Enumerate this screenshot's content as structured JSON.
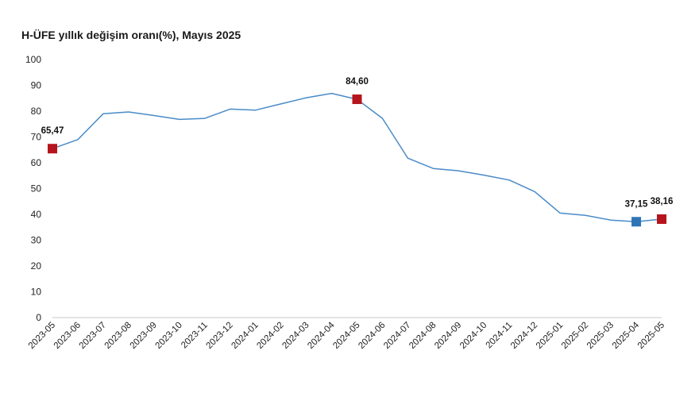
{
  "chart_data": {
    "type": "line",
    "title": "H-ÜFE yıllık değişim oranı(%), Mayıs 2025",
    "categories": [
      "2023-05",
      "2023-06",
      "2023-07",
      "2023-08",
      "2023-09",
      "2023-10",
      "2023-11",
      "2023-12",
      "2024-01",
      "2024-02",
      "2024-03",
      "2024-04",
      "2024-05",
      "2024-06",
      "2024-07",
      "2024-08",
      "2024-09",
      "2024-10",
      "2024-11",
      "2024-12",
      "2025-01",
      "2025-02",
      "2025-03",
      "2025-04",
      "2025-05"
    ],
    "series": [
      {
        "values": [
          65.47,
          69.0,
          79.0,
          79.7,
          78.3,
          76.8,
          77.2,
          80.8,
          80.4,
          82.8,
          85.2,
          86.9,
          84.6,
          77.2,
          61.8,
          57.8,
          56.9,
          55.2,
          53.3,
          48.8,
          40.5,
          39.6,
          37.8,
          37.15,
          38.16
        ],
        "color": "#4a8bc8"
      }
    ],
    "highlights": [
      {
        "index": 0,
        "label": "65,47",
        "color": "#b5141c"
      },
      {
        "index": 12,
        "label": "84,60",
        "color": "#b5141c"
      },
      {
        "index": 23,
        "label": "37,15",
        "color": "#2e75b6"
      },
      {
        "index": 24,
        "label": "38,16",
        "color": "#b5141c"
      }
    ],
    "yticks": [
      "0",
      "10",
      "20",
      "30",
      "40",
      "50",
      "60",
      "70",
      "80",
      "90",
      "100"
    ],
    "ylim": [
      0,
      100
    ],
    "grid": false,
    "legend": "none"
  }
}
